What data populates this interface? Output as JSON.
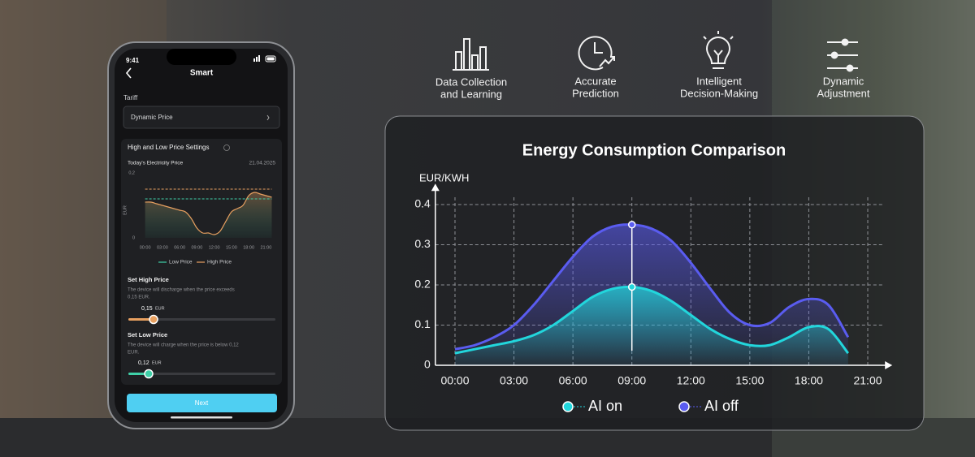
{
  "features": [
    {
      "lines": [
        "Data Collection",
        "and Learning"
      ]
    },
    {
      "lines": [
        "Accurate",
        "Prediction"
      ]
    },
    {
      "lines": [
        "Intelligent",
        "Decision-Making"
      ]
    },
    {
      "lines": [
        "Dynamic",
        "Adjustment"
      ]
    }
  ],
  "phone": {
    "time": "9:41",
    "title": "Smart",
    "tariff_label": "Tariff",
    "tariff_value": "Dynamic Price",
    "settings_title": "High and Low Price Settings",
    "date": "21.04.2025",
    "high": {
      "title": "Set High Price",
      "description": [
        "The device will discharge when the price exceeds",
        "0,15 EUR."
      ],
      "value": "0,15",
      "unit": "EUR"
    },
    "low": {
      "title": "Set Low Price",
      "description": [
        "The device will charge when the price is below 0,12",
        "EUR."
      ],
      "value": "0,12",
      "unit": "EUR"
    },
    "button": "Next"
  },
  "chart_data": [
    {
      "type": "line",
      "title": "Energy Consumption Comparison",
      "y_label": "EUR/KWH",
      "x": [
        0,
        1,
        2,
        3,
        4,
        5,
        6,
        7,
        8,
        9,
        10,
        11,
        12,
        13,
        14,
        15,
        16,
        17,
        18,
        19,
        20
      ],
      "xlim": [
        -1,
        22
      ],
      "xticks": [
        {
          "value": 0,
          "label": "00:00"
        },
        {
          "value": 3,
          "label": "03:00"
        },
        {
          "value": 6,
          "label": "06:00"
        },
        {
          "value": 9,
          "label": "09:00"
        },
        {
          "value": 12,
          "label": "12:00"
        },
        {
          "value": 15,
          "label": "15:00"
        },
        {
          "value": 18,
          "label": "18:00"
        },
        {
          "value": 21,
          "label": "21:00"
        }
      ],
      "ylim": [
        0,
        0.44
      ],
      "yticks": [
        0,
        0.1,
        0.2,
        0.3,
        0.4
      ],
      "grid": true,
      "highlight_x": 9,
      "series": [
        {
          "name": "AI on",
          "color": "#22d6dc",
          "values": [
            0.03,
            0.04,
            0.05,
            0.06,
            0.075,
            0.1,
            0.135,
            0.17,
            0.19,
            0.195,
            0.185,
            0.16,
            0.125,
            0.09,
            0.065,
            0.05,
            0.05,
            0.07,
            0.095,
            0.09,
            0.03
          ]
        },
        {
          "name": "AI off",
          "color": "#5a5cf0",
          "values": [
            0.04,
            0.05,
            0.07,
            0.1,
            0.15,
            0.21,
            0.27,
            0.32,
            0.345,
            0.35,
            0.34,
            0.31,
            0.255,
            0.19,
            0.13,
            0.1,
            0.105,
            0.145,
            0.165,
            0.15,
            0.07
          ]
        }
      ]
    },
    {
      "type": "line",
      "title": "Today's Electricity Price",
      "y_label": "EUR",
      "x": [
        0,
        1,
        2,
        3,
        4,
        5,
        6,
        7,
        8,
        9,
        10,
        11,
        12,
        13,
        14,
        15,
        16,
        17,
        18,
        19,
        20,
        21,
        22
      ],
      "values": [
        0.11,
        0.11,
        0.105,
        0.1,
        0.095,
        0.09,
        0.085,
        0.08,
        0.06,
        0.03,
        0.015,
        0.015,
        0.01,
        0.02,
        0.05,
        0.08,
        0.09,
        0.1,
        0.13,
        0.14,
        0.135,
        0.13,
        0.125
      ],
      "color": "#e8a060",
      "xlim": [
        -1.5,
        22.5
      ],
      "xticks": [
        {
          "value": 0,
          "label": "00:00"
        },
        {
          "value": 3,
          "label": "03:00"
        },
        {
          "value": 6,
          "label": "06:00"
        },
        {
          "value": 9,
          "label": "09:00"
        },
        {
          "value": 12,
          "label": "12:00"
        },
        {
          "value": 15,
          "label": "15:00"
        },
        {
          "value": 18,
          "label": "18:00"
        },
        {
          "value": 21,
          "label": "21:00"
        }
      ],
      "ylim": [
        0,
        0.2
      ],
      "yticks": [
        0,
        {
          "value": 0.2,
          "label": "0,2"
        }
      ],
      "series": [
        {
          "name": "Low Price",
          "color": "#3fd0a8",
          "values": [
            0.12,
            0.12,
            0.12,
            0.12,
            0.12,
            0.12,
            0.12,
            0.12,
            0.12,
            0.12,
            0.12,
            0.12,
            0.12,
            0.12,
            0.12,
            0.12,
            0.12,
            0.12,
            0.12,
            0.12,
            0.12,
            0.12,
            0.12
          ]
        },
        {
          "name": "High Price",
          "color": "#e8a060",
          "values": [
            0.15,
            0.15,
            0.15,
            0.15,
            0.15,
            0.15,
            0.15,
            0.15,
            0.15,
            0.15,
            0.15,
            0.15,
            0.15,
            0.15,
            0.15,
            0.15,
            0.15,
            0.15,
            0.15,
            0.15,
            0.15,
            0.15,
            0.15
          ]
        }
      ]
    }
  ]
}
